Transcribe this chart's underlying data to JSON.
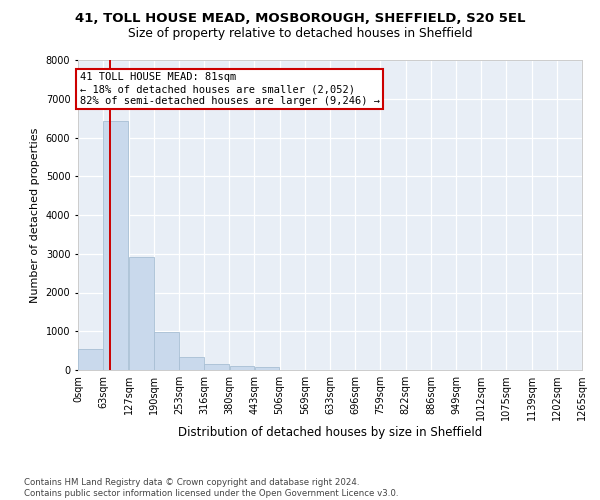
{
  "title1": "41, TOLL HOUSE MEAD, MOSBOROUGH, SHEFFIELD, S20 5EL",
  "title2": "Size of property relative to detached houses in Sheffield",
  "xlabel": "Distribution of detached houses by size in Sheffield",
  "ylabel": "Number of detached properties",
  "bar_color": "#c9d9ec",
  "bar_edge_color": "#a8bfd4",
  "background_color": "#e8eef6",
  "grid_color": "#ffffff",
  "vline_x": 81,
  "vline_color": "#cc0000",
  "annotation_text": "41 TOLL HOUSE MEAD: 81sqm\n← 18% of detached houses are smaller (2,052)\n82% of semi-detached houses are larger (9,246) →",
  "annotation_box_edgecolor": "#cc0000",
  "bins": [
    0,
    63,
    127,
    190,
    253,
    316,
    380,
    443,
    506,
    569,
    633,
    696,
    759,
    822,
    886,
    949,
    1012,
    1075,
    1139,
    1202,
    1265
  ],
  "bin_labels": [
    "0sqm",
    "63sqm",
    "127sqm",
    "190sqm",
    "253sqm",
    "316sqm",
    "380sqm",
    "443sqm",
    "506sqm",
    "569sqm",
    "633sqm",
    "696sqm",
    "759sqm",
    "822sqm",
    "886sqm",
    "949sqm",
    "1012sqm",
    "1075sqm",
    "1139sqm",
    "1202sqm",
    "1265sqm"
  ],
  "bar_heights": [
    540,
    6420,
    2920,
    970,
    335,
    165,
    110,
    70,
    0,
    0,
    0,
    0,
    0,
    0,
    0,
    0,
    0,
    0,
    0,
    0
  ],
  "ylim": [
    0,
    8000
  ],
  "yticks": [
    0,
    1000,
    2000,
    3000,
    4000,
    5000,
    6000,
    7000,
    8000
  ],
  "footnote": "Contains HM Land Registry data © Crown copyright and database right 2024.\nContains public sector information licensed under the Open Government Licence v3.0.",
  "title1_fontsize": 9.5,
  "title2_fontsize": 8.8,
  "xlabel_fontsize": 8.5,
  "ylabel_fontsize": 8.0,
  "tick_fontsize": 7.0,
  "annot_fontsize": 7.5,
  "footnote_fontsize": 6.2
}
